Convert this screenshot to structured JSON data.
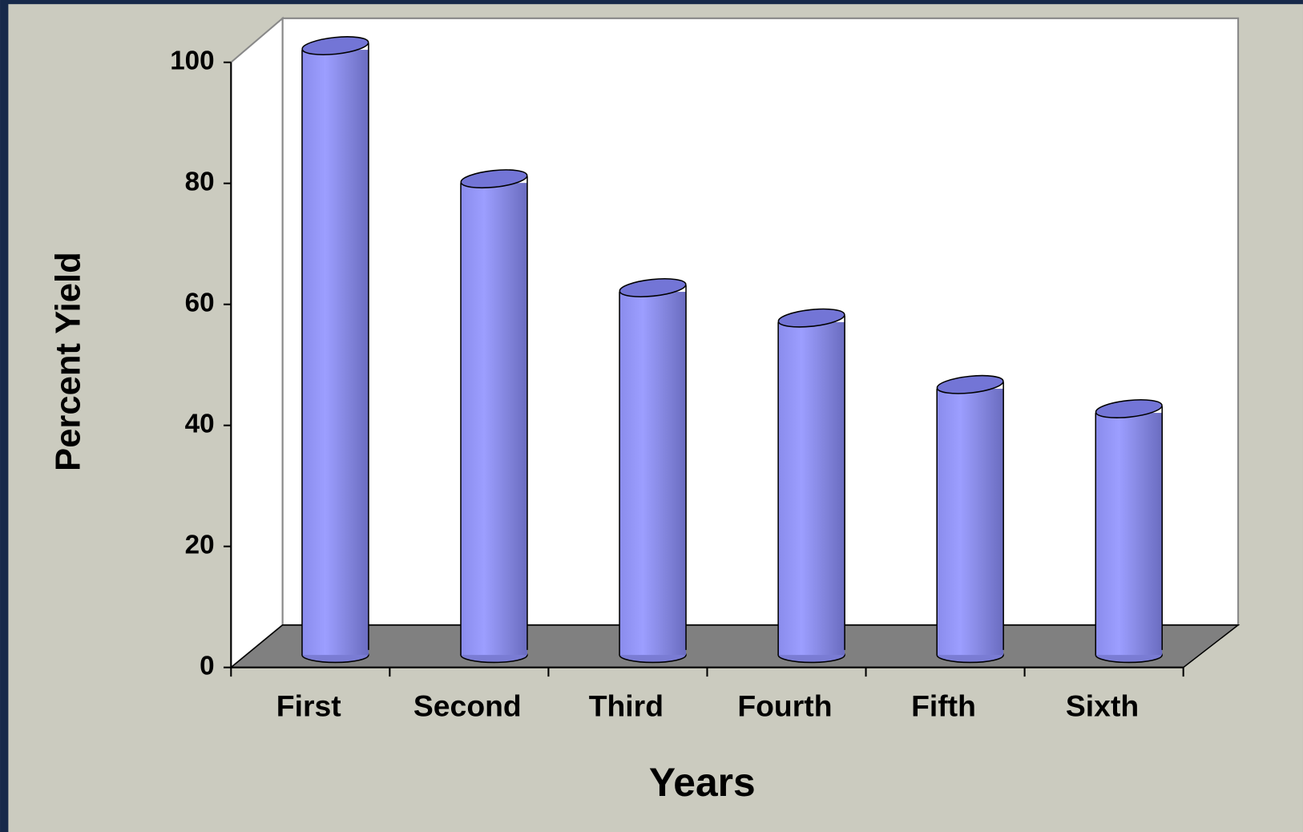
{
  "chart_data": {
    "type": "bar",
    "xlabel": "Years",
    "ylabel": "Percent Yield",
    "categories": [
      "First",
      "Second",
      "Third",
      "Fourth",
      "Fifth",
      "Sixth"
    ],
    "values": [
      100,
      78,
      60,
      55,
      44,
      40
    ],
    "color": "#8f91f0",
    "ylim": [
      0,
      100
    ],
    "yticks": [
      0,
      20,
      40,
      60,
      80,
      100
    ]
  }
}
